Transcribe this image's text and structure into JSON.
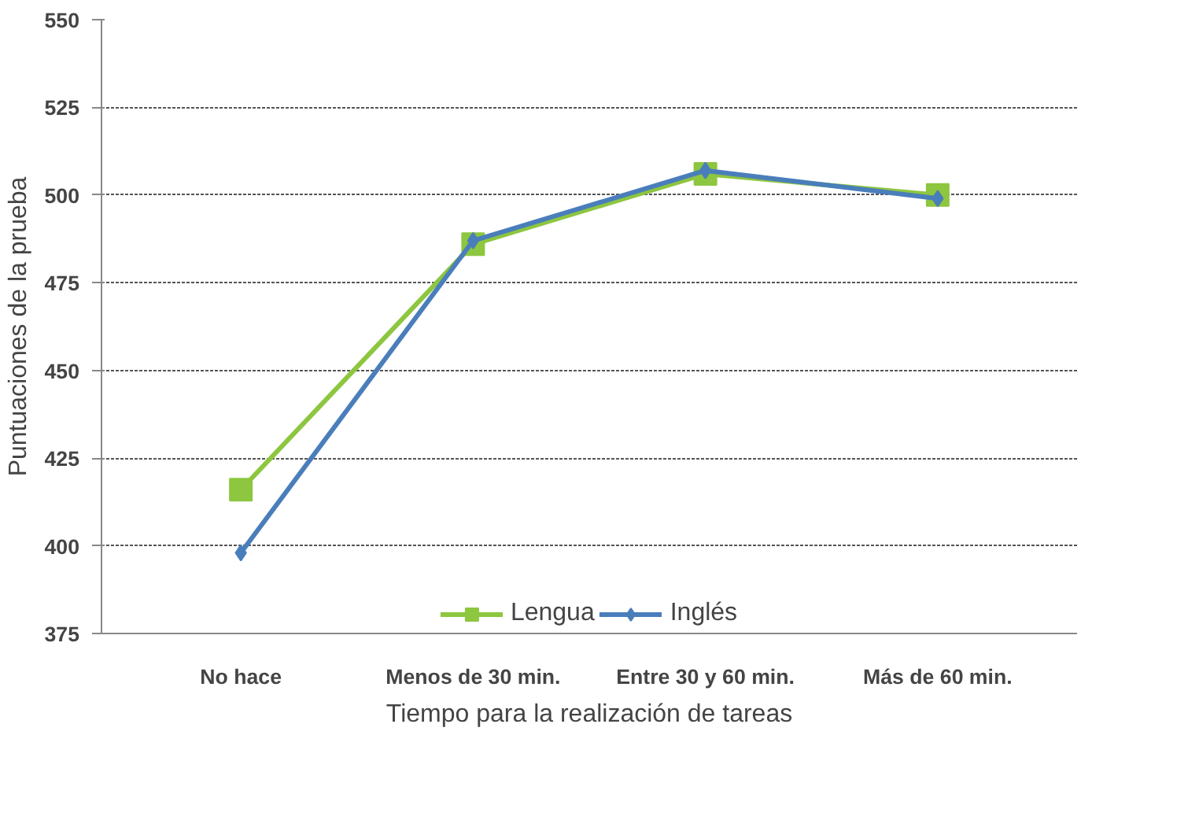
{
  "chart_data": {
    "type": "line",
    "xlabel": "Tiempo para la realización de tareas",
    "ylabel": "Puntuaciones de la prueba",
    "categories": [
      "No hace",
      "Menos de 30 min.",
      "Entre 30 y 60 min.",
      "Más de 60 min."
    ],
    "series": [
      {
        "name": "Lengua",
        "color": "#8dc63f",
        "marker": "square",
        "values": [
          416,
          486,
          506,
          500
        ]
      },
      {
        "name": "Inglés",
        "color": "#4a7ebb",
        "marker": "diamond",
        "values": [
          398,
          487,
          507,
          499
        ]
      }
    ],
    "ylim": [
      375,
      550
    ],
    "yticks": [
      375,
      400,
      425,
      450,
      475,
      500,
      525,
      550
    ],
    "grid": "y",
    "legend": "bottom",
    "line_style": "solid"
  }
}
